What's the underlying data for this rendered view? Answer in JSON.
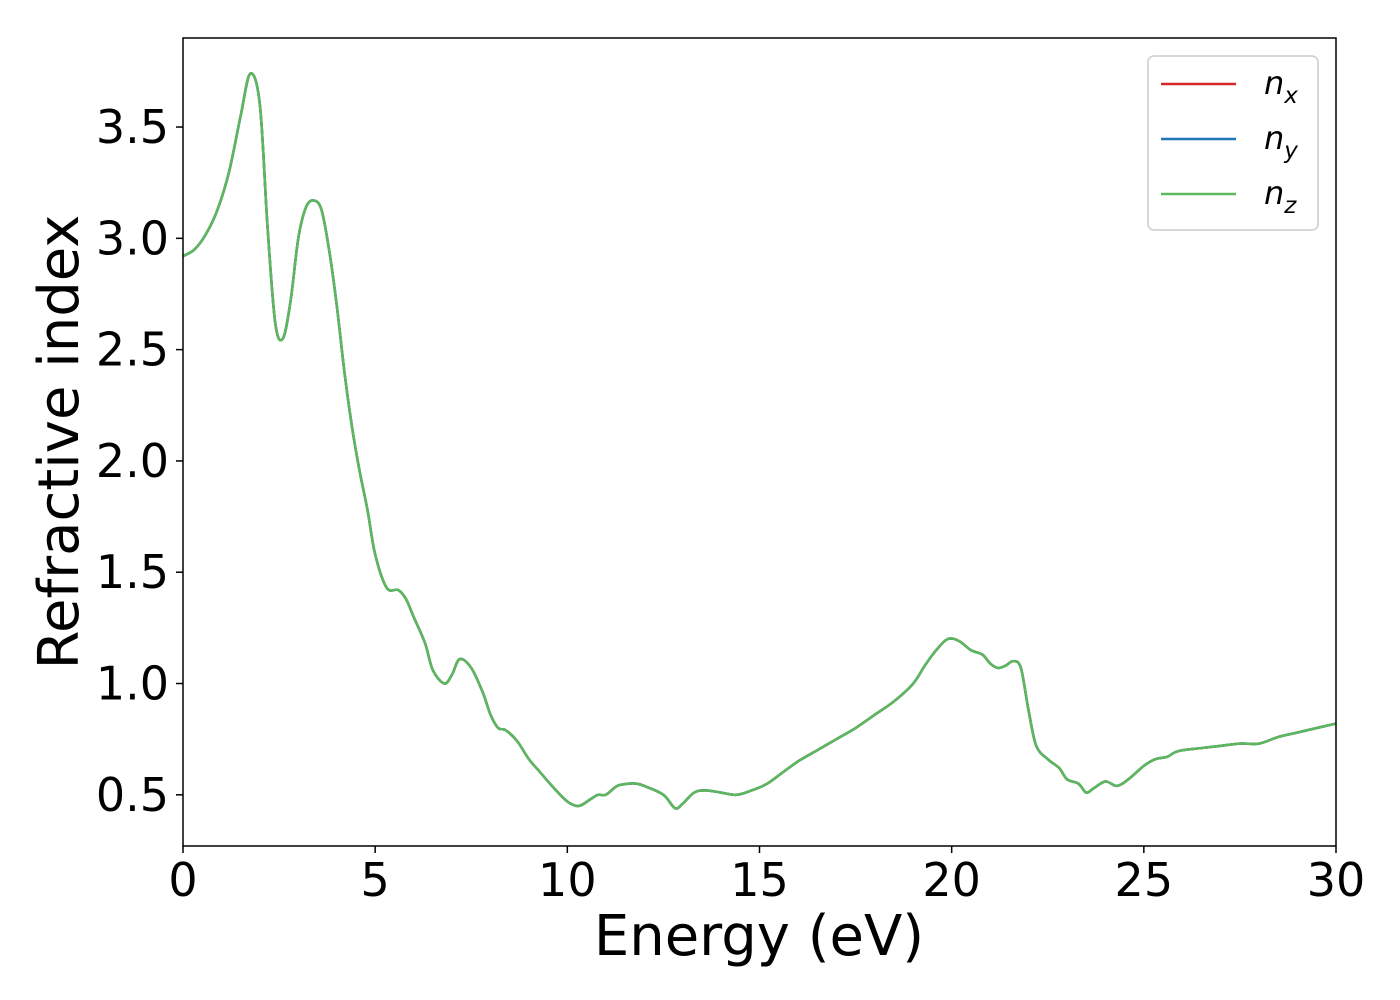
{
  "chart_data": {
    "type": "line",
    "xlabel": "Energy (eV)",
    "ylabel": "Refractive index",
    "xlim": [
      0,
      30
    ],
    "ylim": [
      0.27,
      3.9
    ],
    "xticks": [
      0,
      5,
      10,
      15,
      20,
      25,
      30
    ],
    "xtick_labels": [
      "0",
      "5",
      "10",
      "15",
      "20",
      "25",
      "30"
    ],
    "yticks": [
      0.5,
      1.0,
      1.5,
      2.0,
      2.5,
      3.0,
      3.5
    ],
    "ytick_labels": [
      "0.5",
      "1.0",
      "1.5",
      "2.0",
      "2.5",
      "3.0",
      "3.5"
    ],
    "grid": false,
    "legend_position": "top-right",
    "x": [
      0,
      0.3,
      0.6,
      0.9,
      1.2,
      1.5,
      1.75,
      2.0,
      2.2,
      2.4,
      2.6,
      2.8,
      3.0,
      3.2,
      3.4,
      3.6,
      3.8,
      4.0,
      4.2,
      4.4,
      4.6,
      4.8,
      5.0,
      5.3,
      5.6,
      5.8,
      6.0,
      6.3,
      6.5,
      6.8,
      7.0,
      7.2,
      7.5,
      7.8,
      8.0,
      8.2,
      8.4,
      8.7,
      9.0,
      9.3,
      9.6,
      10.0,
      10.3,
      10.6,
      10.8,
      11.0,
      11.3,
      11.6,
      11.8,
      12.0,
      12.5,
      12.8,
      13.0,
      13.3,
      13.6,
      14.0,
      14.4,
      14.8,
      15.2,
      15.6,
      16.0,
      16.5,
      17.0,
      17.5,
      18.0,
      18.5,
      19.0,
      19.3,
      19.6,
      19.9,
      20.2,
      20.5,
      20.8,
      21.0,
      21.2,
      21.4,
      21.6,
      21.8,
      22.0,
      22.2,
      22.5,
      22.8,
      23.0,
      23.3,
      23.5,
      23.7,
      24.0,
      24.3,
      24.6,
      25.0,
      25.3,
      25.6,
      25.8,
      26.0,
      26.5,
      27.0,
      27.5,
      28.0,
      28.5,
      29.0,
      29.5,
      30.0
    ],
    "series": [
      {
        "name": "n_x",
        "color": "#d62728",
        "values": [
          2.92,
          2.95,
          3.02,
          3.13,
          3.3,
          3.55,
          3.74,
          3.6,
          3.05,
          2.62,
          2.55,
          2.72,
          3.0,
          3.14,
          3.17,
          3.13,
          2.95,
          2.7,
          2.4,
          2.15,
          1.95,
          1.78,
          1.58,
          1.43,
          1.42,
          1.38,
          1.3,
          1.18,
          1.06,
          1.0,
          1.04,
          1.11,
          1.07,
          0.96,
          0.86,
          0.8,
          0.79,
          0.74,
          0.66,
          0.6,
          0.54,
          0.47,
          0.45,
          0.48,
          0.5,
          0.5,
          0.54,
          0.55,
          0.55,
          0.54,
          0.5,
          0.44,
          0.46,
          0.51,
          0.52,
          0.51,
          0.5,
          0.52,
          0.55,
          0.6,
          0.65,
          0.7,
          0.75,
          0.8,
          0.86,
          0.92,
          1.0,
          1.08,
          1.15,
          1.2,
          1.19,
          1.15,
          1.13,
          1.09,
          1.07,
          1.08,
          1.1,
          1.07,
          0.88,
          0.72,
          0.66,
          0.62,
          0.57,
          0.55,
          0.51,
          0.53,
          0.56,
          0.54,
          0.57,
          0.63,
          0.66,
          0.67,
          0.69,
          0.7,
          0.71,
          0.72,
          0.73,
          0.73,
          0.76,
          0.78,
          0.8,
          0.82
        ]
      },
      {
        "name": "n_y",
        "color": "#1f77b4",
        "values": [
          2.92,
          2.95,
          3.02,
          3.13,
          3.3,
          3.55,
          3.74,
          3.6,
          3.05,
          2.62,
          2.55,
          2.72,
          3.0,
          3.14,
          3.17,
          3.13,
          2.95,
          2.7,
          2.4,
          2.15,
          1.95,
          1.78,
          1.58,
          1.43,
          1.42,
          1.38,
          1.3,
          1.18,
          1.06,
          1.0,
          1.04,
          1.11,
          1.07,
          0.96,
          0.86,
          0.8,
          0.79,
          0.74,
          0.66,
          0.6,
          0.54,
          0.47,
          0.45,
          0.48,
          0.5,
          0.5,
          0.54,
          0.55,
          0.55,
          0.54,
          0.5,
          0.44,
          0.46,
          0.51,
          0.52,
          0.51,
          0.5,
          0.52,
          0.55,
          0.6,
          0.65,
          0.7,
          0.75,
          0.8,
          0.86,
          0.92,
          1.0,
          1.08,
          1.15,
          1.2,
          1.19,
          1.15,
          1.13,
          1.09,
          1.07,
          1.08,
          1.1,
          1.07,
          0.88,
          0.72,
          0.66,
          0.62,
          0.57,
          0.55,
          0.51,
          0.53,
          0.56,
          0.54,
          0.57,
          0.63,
          0.66,
          0.67,
          0.69,
          0.7,
          0.71,
          0.72,
          0.73,
          0.73,
          0.76,
          0.78,
          0.8,
          0.82
        ]
      },
      {
        "name": "n_z",
        "color": "#5cb85c",
        "values": [
          2.92,
          2.95,
          3.02,
          3.13,
          3.3,
          3.55,
          3.74,
          3.6,
          3.05,
          2.62,
          2.55,
          2.72,
          3.0,
          3.14,
          3.17,
          3.13,
          2.95,
          2.7,
          2.4,
          2.15,
          1.95,
          1.78,
          1.58,
          1.43,
          1.42,
          1.38,
          1.3,
          1.18,
          1.06,
          1.0,
          1.04,
          1.11,
          1.07,
          0.96,
          0.86,
          0.8,
          0.79,
          0.74,
          0.66,
          0.6,
          0.54,
          0.47,
          0.45,
          0.48,
          0.5,
          0.5,
          0.54,
          0.55,
          0.55,
          0.54,
          0.5,
          0.44,
          0.46,
          0.51,
          0.52,
          0.51,
          0.5,
          0.52,
          0.55,
          0.6,
          0.65,
          0.7,
          0.75,
          0.8,
          0.86,
          0.92,
          1.0,
          1.08,
          1.15,
          1.2,
          1.19,
          1.15,
          1.13,
          1.09,
          1.07,
          1.08,
          1.1,
          1.07,
          0.88,
          0.72,
          0.66,
          0.62,
          0.57,
          0.55,
          0.51,
          0.53,
          0.56,
          0.54,
          0.57,
          0.63,
          0.66,
          0.67,
          0.69,
          0.7,
          0.71,
          0.72,
          0.73,
          0.73,
          0.76,
          0.78,
          0.8,
          0.82
        ]
      }
    ],
    "legend": [
      {
        "base": "n",
        "sub": "x",
        "color": "#d62728"
      },
      {
        "base": "n",
        "sub": "y",
        "color": "#1f77b4"
      },
      {
        "base": "n",
        "sub": "z",
        "color": "#5cb85c"
      }
    ]
  }
}
